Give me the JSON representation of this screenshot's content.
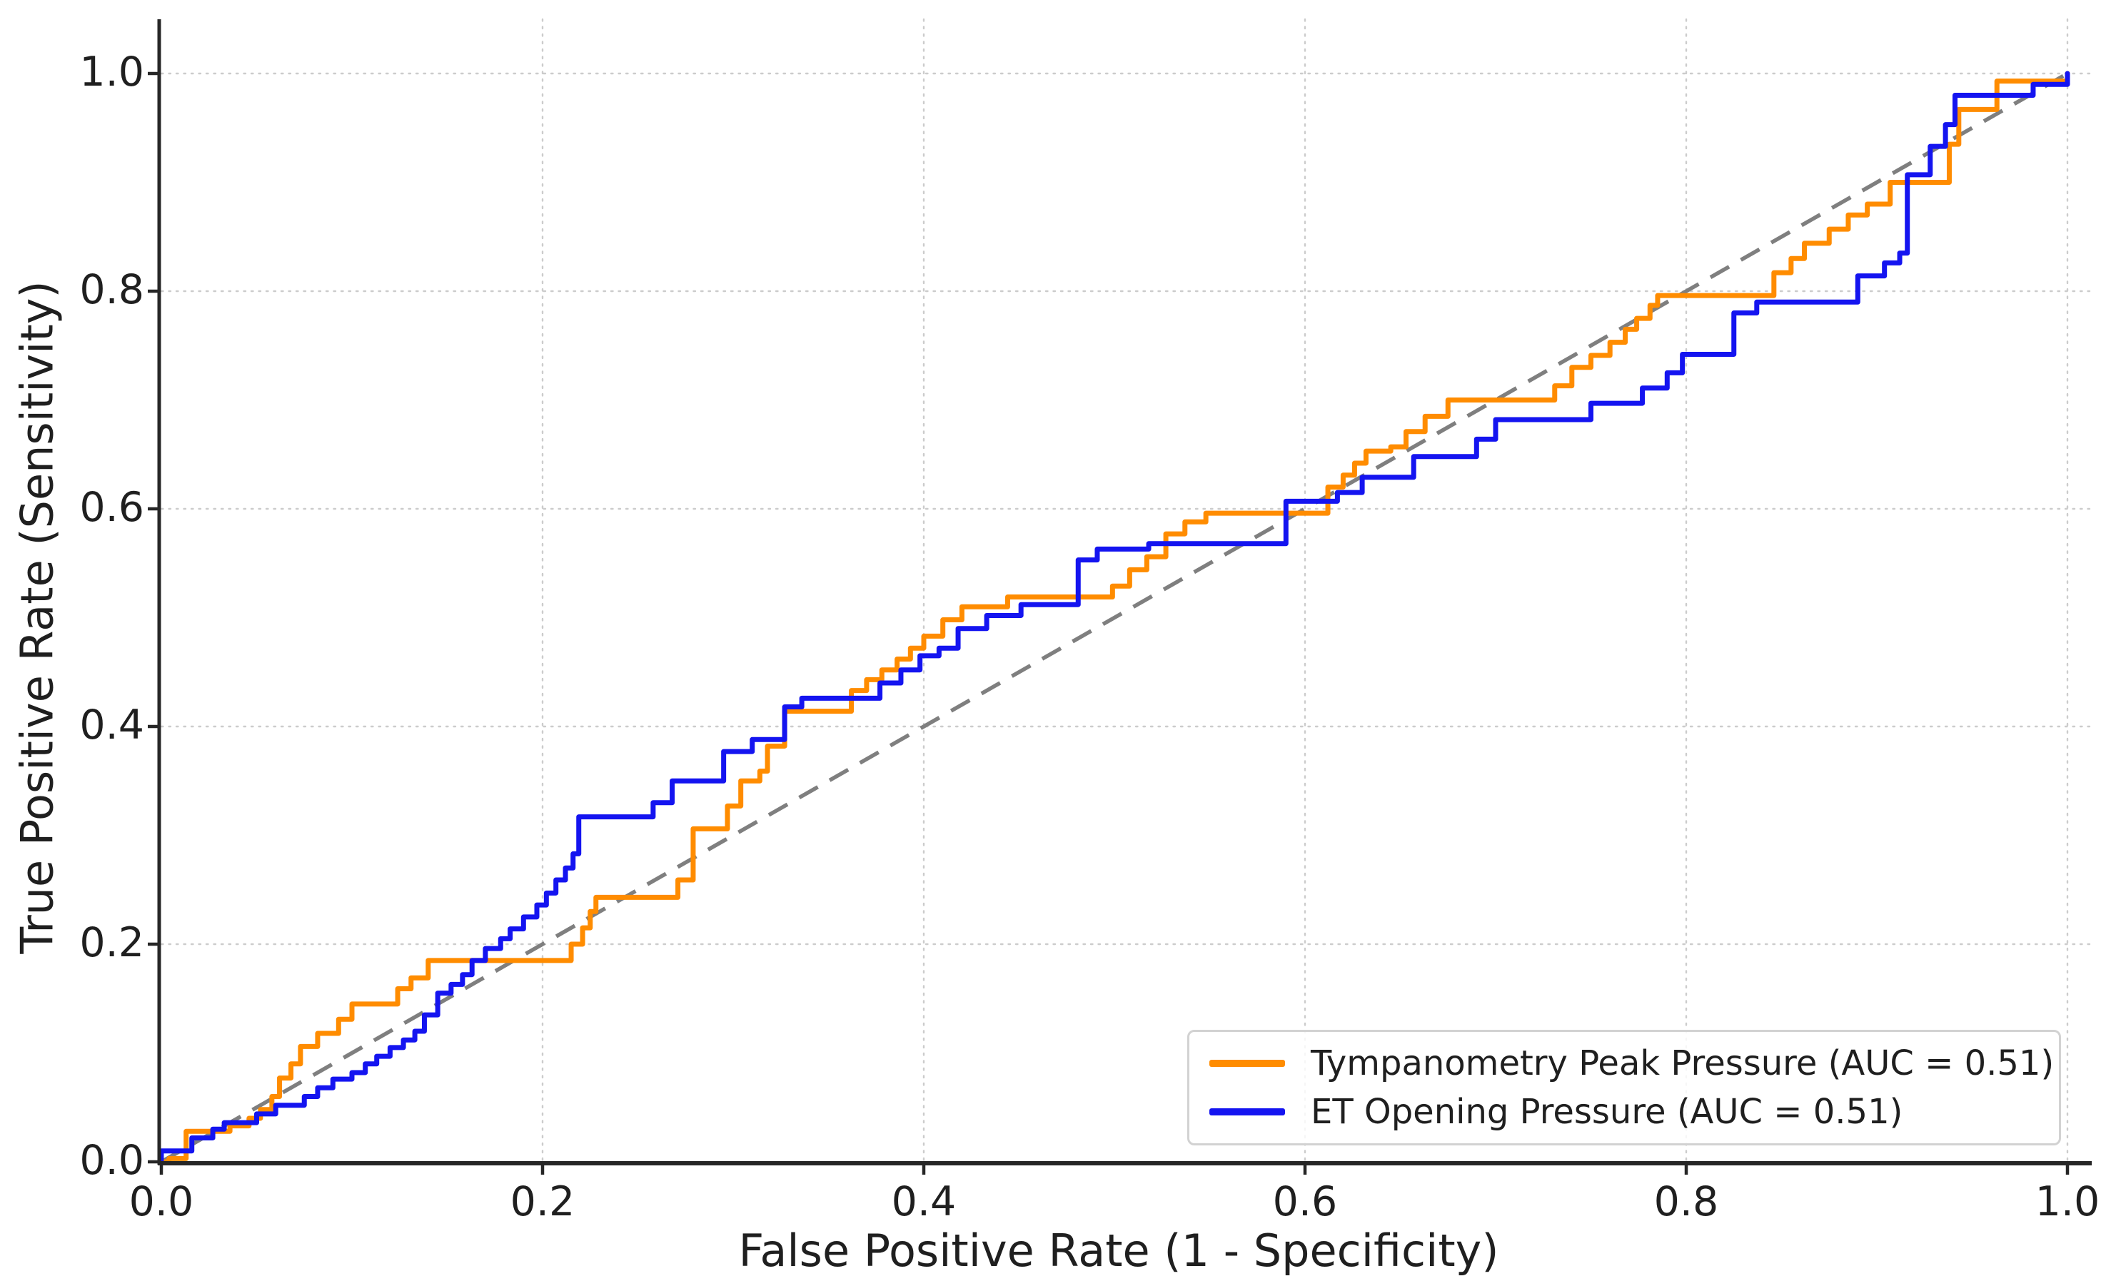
{
  "figure": {
    "background_color": "#ffffff",
    "text_color": "#1f1f1f",
    "grid_color": "#cccccc",
    "spine_color": "#262626",
    "diagonal_color": "#7f7f7f"
  },
  "chart_data": {
    "type": "line",
    "subtype": "roc_curve_step",
    "title": "",
    "xlabel": "False Positive Rate (1 - Specificity)",
    "ylabel": "True Positive Rate (Sensitivity)",
    "xlim": [
      0.0,
      1.0
    ],
    "ylim": [
      0.0,
      1.05
    ],
    "grid": true,
    "legend_position": "lower right",
    "x_tick_values": [
      0.0,
      0.2,
      0.4,
      0.6,
      0.8,
      1.0
    ],
    "y_tick_values": [
      0.0,
      0.2,
      0.4,
      0.6,
      0.8,
      1.0
    ],
    "x_tick_labels": [
      "0.0",
      "0.2",
      "0.4",
      "0.6",
      "0.8",
      "1.0"
    ],
    "y_tick_labels": [
      "0.0",
      "0.2",
      "0.4",
      "0.6",
      "0.8",
      "1.0"
    ],
    "reference_line": {
      "style": "dashed",
      "color": "#7f7f7f",
      "from": [
        0,
        0
      ],
      "to": [
        1,
        1
      ]
    },
    "series": [
      {
        "name": "Tympanometry Peak Pressure (AUC = 0.51)",
        "auc": 0.51,
        "color": "#ff8c00",
        "points": [
          [
            0,
            0
          ],
          [
            0.004,
            0.003
          ],
          [
            0.013,
            0.028
          ],
          [
            0.036,
            0.033
          ],
          [
            0.046,
            0.04
          ],
          [
            0.052,
            0.048
          ],
          [
            0.058,
            0.06
          ],
          [
            0.062,
            0.077
          ],
          [
            0.068,
            0.09
          ],
          [
            0.073,
            0.106
          ],
          [
            0.082,
            0.118
          ],
          [
            0.093,
            0.131
          ],
          [
            0.1,
            0.145
          ],
          [
            0.124,
            0.159
          ],
          [
            0.131,
            0.169
          ],
          [
            0.14,
            0.185
          ],
          [
            0.215,
            0.2
          ],
          [
            0.221,
            0.215
          ],
          [
            0.225,
            0.23
          ],
          [
            0.228,
            0.243
          ],
          [
            0.271,
            0.259
          ],
          [
            0.279,
            0.306
          ],
          [
            0.297,
            0.327
          ],
          [
            0.304,
            0.35
          ],
          [
            0.314,
            0.359
          ],
          [
            0.318,
            0.382
          ],
          [
            0.327,
            0.414
          ],
          [
            0.362,
            0.433
          ],
          [
            0.37,
            0.443
          ],
          [
            0.378,
            0.452
          ],
          [
            0.386,
            0.462
          ],
          [
            0.393,
            0.472
          ],
          [
            0.4,
            0.483
          ],
          [
            0.41,
            0.498
          ],
          [
            0.42,
            0.51
          ],
          [
            0.444,
            0.519
          ],
          [
            0.499,
            0.529
          ],
          [
            0.508,
            0.544
          ],
          [
            0.517,
            0.556
          ],
          [
            0.527,
            0.577
          ],
          [
            0.537,
            0.588
          ],
          [
            0.548,
            0.596
          ],
          [
            0.612,
            0.62
          ],
          [
            0.62,
            0.631
          ],
          [
            0.626,
            0.642
          ],
          [
            0.632,
            0.653
          ],
          [
            0.645,
            0.657
          ],
          [
            0.653,
            0.671
          ],
          [
            0.663,
            0.685
          ],
          [
            0.675,
            0.7
          ],
          [
            0.731,
            0.713
          ],
          [
            0.74,
            0.73
          ],
          [
            0.75,
            0.741
          ],
          [
            0.76,
            0.753
          ],
          [
            0.768,
            0.765
          ],
          [
            0.774,
            0.775
          ],
          [
            0.781,
            0.787
          ],
          [
            0.785,
            0.796
          ],
          [
            0.846,
            0.817
          ],
          [
            0.855,
            0.83
          ],
          [
            0.862,
            0.844
          ],
          [
            0.875,
            0.857
          ],
          [
            0.885,
            0.87
          ],
          [
            0.895,
            0.88
          ],
          [
            0.907,
            0.9
          ],
          [
            0.938,
            0.935
          ],
          [
            0.943,
            0.967
          ],
          [
            0.963,
            0.993
          ],
          [
            1,
            1
          ]
        ]
      },
      {
        "name": "ET Opening Pressure (AUC = 0.51)",
        "auc": 0.51,
        "color": "#1414f0",
        "points": [
          [
            0,
            0
          ],
          [
            0,
            0.01
          ],
          [
            0.016,
            0.022
          ],
          [
            0.027,
            0.03
          ],
          [
            0.033,
            0.036
          ],
          [
            0.05,
            0.044
          ],
          [
            0.06,
            0.052
          ],
          [
            0.075,
            0.06
          ],
          [
            0.082,
            0.068
          ],
          [
            0.09,
            0.076
          ],
          [
            0.1,
            0.082
          ],
          [
            0.107,
            0.09
          ],
          [
            0.113,
            0.097
          ],
          [
            0.12,
            0.105
          ],
          [
            0.127,
            0.112
          ],
          [
            0.133,
            0.12
          ],
          [
            0.138,
            0.135
          ],
          [
            0.145,
            0.155
          ],
          [
            0.152,
            0.163
          ],
          [
            0.158,
            0.172
          ],
          [
            0.163,
            0.185
          ],
          [
            0.17,
            0.196
          ],
          [
            0.178,
            0.205
          ],
          [
            0.183,
            0.214
          ],
          [
            0.19,
            0.225
          ],
          [
            0.197,
            0.236
          ],
          [
            0.202,
            0.247
          ],
          [
            0.207,
            0.259
          ],
          [
            0.212,
            0.27
          ],
          [
            0.216,
            0.283
          ],
          [
            0.219,
            0.317
          ],
          [
            0.258,
            0.33
          ],
          [
            0.268,
            0.35
          ],
          [
            0.295,
            0.377
          ],
          [
            0.31,
            0.388
          ],
          [
            0.327,
            0.418
          ],
          [
            0.336,
            0.426
          ],
          [
            0.377,
            0.44
          ],
          [
            0.388,
            0.452
          ],
          [
            0.398,
            0.465
          ],
          [
            0.408,
            0.472
          ],
          [
            0.418,
            0.49
          ],
          [
            0.433,
            0.502
          ],
          [
            0.451,
            0.512
          ],
          [
            0.481,
            0.553
          ],
          [
            0.491,
            0.563
          ],
          [
            0.518,
            0.568
          ],
          [
            0.59,
            0.607
          ],
          [
            0.617,
            0.615
          ],
          [
            0.63,
            0.629
          ],
          [
            0.657,
            0.648
          ],
          [
            0.69,
            0.664
          ],
          [
            0.7,
            0.682
          ],
          [
            0.75,
            0.697
          ],
          [
            0.777,
            0.711
          ],
          [
            0.79,
            0.725
          ],
          [
            0.798,
            0.742
          ],
          [
            0.825,
            0.78
          ],
          [
            0.837,
            0.79
          ],
          [
            0.89,
            0.814
          ],
          [
            0.904,
            0.826
          ],
          [
            0.912,
            0.835
          ],
          [
            0.916,
            0.907
          ],
          [
            0.928,
            0.933
          ],
          [
            0.936,
            0.953
          ],
          [
            0.941,
            0.98
          ],
          [
            0.982,
            0.99
          ],
          [
            1,
            1
          ]
        ]
      }
    ]
  }
}
